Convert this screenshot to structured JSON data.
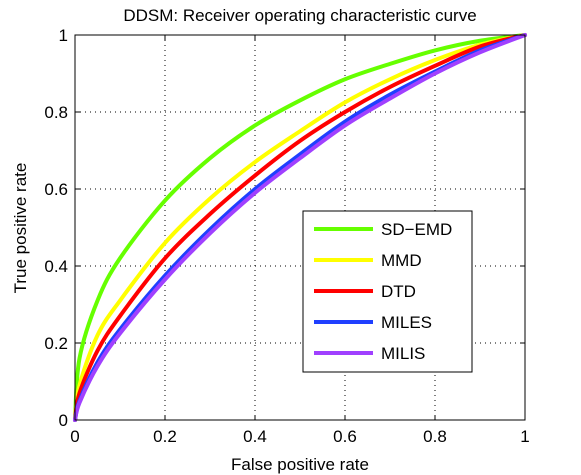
{
  "chart_data": {
    "type": "line",
    "title": "DDSM: Receiver operating characteristic curve",
    "xlabel": "False positive rate",
    "ylabel": "True positive rate",
    "xlim": [
      0,
      1
    ],
    "ylim": [
      0,
      1
    ],
    "xticks": [
      0,
      0.2,
      0.4,
      0.6,
      0.8,
      1
    ],
    "yticks": [
      0,
      0.2,
      0.4,
      0.6,
      0.8,
      1
    ],
    "x_tick_labels": [
      "0",
      "0.2",
      "0.4",
      "0.6",
      "0.8",
      "1"
    ],
    "y_tick_labels": [
      "0",
      "0.2",
      "0.4",
      "0.6",
      "0.8",
      "1"
    ],
    "grid": true,
    "legend_position": "center-right",
    "x": [
      0,
      0.01,
      0.05,
      0.1,
      0.2,
      0.3,
      0.4,
      0.5,
      0.6,
      0.7,
      0.8,
      0.9,
      1.0
    ],
    "series": [
      {
        "name": "SD−EMD",
        "color": "#66ff00",
        "values": [
          0,
          0.16,
          0.31,
          0.42,
          0.57,
          0.68,
          0.765,
          0.83,
          0.885,
          0.925,
          0.96,
          0.985,
          1.0
        ]
      },
      {
        "name": "MMD",
        "color": "#ffff00",
        "values": [
          0,
          0.09,
          0.22,
          0.31,
          0.46,
          0.575,
          0.67,
          0.75,
          0.825,
          0.885,
          0.935,
          0.975,
          1.0
        ]
      },
      {
        "name": "DTD",
        "color": "#ff0000",
        "values": [
          0,
          0.07,
          0.18,
          0.27,
          0.42,
          0.535,
          0.635,
          0.725,
          0.8,
          0.865,
          0.92,
          0.97,
          1.0
        ]
      },
      {
        "name": "MILES",
        "color": "#1f3fff",
        "values": [
          0,
          0.05,
          0.15,
          0.235,
          0.375,
          0.495,
          0.6,
          0.69,
          0.775,
          0.845,
          0.905,
          0.96,
          1.0
        ]
      },
      {
        "name": "MILIS",
        "color": "#a040ff",
        "values": [
          0,
          0.045,
          0.14,
          0.225,
          0.365,
          0.485,
          0.59,
          0.68,
          0.765,
          0.835,
          0.9,
          0.955,
          1.0
        ]
      }
    ]
  }
}
